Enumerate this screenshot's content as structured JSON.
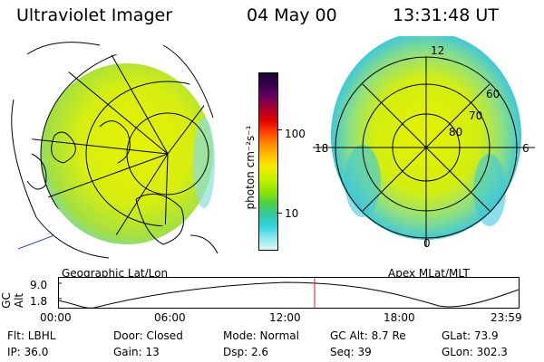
{
  "header": {
    "instrument": "Ultraviolet Imager",
    "date": "04 May 00",
    "time": "13:31:48 UT"
  },
  "colorbar": {
    "label": "photon cm⁻²s⁻¹",
    "ticks": [
      "100",
      "10"
    ],
    "colors": [
      "#1a0033",
      "#3a0050",
      "#6a0060",
      "#a80030",
      "#e00000",
      "#ff4000",
      "#ff8a00",
      "#ffc000",
      "#f5ee00",
      "#c8f000",
      "#90e400",
      "#50d040",
      "#30c8a0",
      "#30d4e0",
      "#8ce8f0",
      "#dff5f8"
    ]
  },
  "panels": {
    "left_label": "Geographic Lat/Lon",
    "right_label": "Apex MLat/MLT"
  },
  "polar_plot": {
    "mlt_labels": {
      "top": "12",
      "left": "18",
      "right": "6",
      "bottom": "0"
    },
    "lat_labels": [
      "60",
      "70",
      "80"
    ]
  },
  "altitude_plot": {
    "ylabel": "GC Alt",
    "yticks": [
      "9.0",
      "1.8"
    ],
    "xticks": [
      "00:00",
      "06:00",
      "12:00",
      "18:00",
      "23:59"
    ],
    "marker_color": "#d02020"
  },
  "info": {
    "row1": {
      "flt": "Flt: LBHL",
      "door": "Door: Closed",
      "mode": "Mode: Normal",
      "gcalt": "GC Alt: 8.7 Re",
      "glat": "GLat:  73.9"
    },
    "row2": {
      "ip": "IP: 36.0",
      "gain": "Gain: 13",
      "dsp": "Dsp:    2.6",
      "seq": "Seq: 39",
      "glon": "GLon: 302.3"
    }
  }
}
